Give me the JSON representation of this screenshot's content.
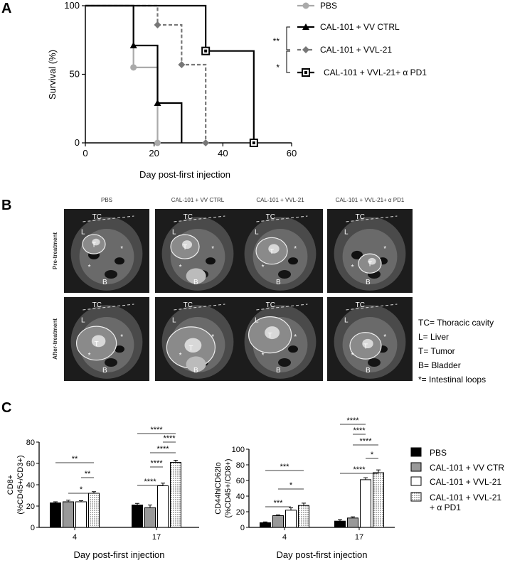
{
  "panels": {
    "a": "A",
    "b": "B",
    "c": "C"
  },
  "chart_data": [
    {
      "type": "line",
      "subtype": "kaplan-meier",
      "ylabel": "Survival (%)",
      "xlabel": "Day post-first injection",
      "xlim": [
        0,
        60
      ],
      "ylim": [
        0,
        100
      ],
      "xticks": [
        "0",
        "20",
        "40",
        "60"
      ],
      "yticks": [
        "0",
        "50",
        "100"
      ],
      "series": [
        {
          "name": "PBS",
          "color": "#aaaaaa",
          "dash": false,
          "marker": "circle",
          "x": [
            0,
            14,
            14,
            21,
            21
          ],
          "y": [
            100,
            100,
            55,
            55,
            0
          ]
        },
        {
          "name": "CAL-101 + VV CTRL",
          "color": "#000000",
          "dash": false,
          "marker": "triangle",
          "x": [
            0,
            14,
            14,
            21,
            21,
            28,
            28
          ],
          "y": [
            100,
            100,
            71,
            71,
            29,
            29,
            0
          ]
        },
        {
          "name": "CAL-101 + VVL-21",
          "color": "#777777",
          "dash": true,
          "marker": "diamond",
          "x": [
            0,
            21,
            21,
            28,
            28,
            35,
            35
          ],
          "y": [
            100,
            100,
            86,
            86,
            57,
            57,
            0
          ]
        },
        {
          "name": "CAL-101 + VVL-21+ α PD1",
          "color": "#000000",
          "dash": false,
          "marker": "square",
          "x": [
            0,
            35,
            35,
            49,
            49
          ],
          "y": [
            100,
            100,
            67,
            67,
            0
          ]
        }
      ],
      "markers": [
        {
          "series": 0,
          "x": 14,
          "y": 55
        },
        {
          "series": 0,
          "x": 21,
          "y": 0
        },
        {
          "series": 1,
          "x": 14,
          "y": 71
        },
        {
          "series": 1,
          "x": 21,
          "y": 29
        },
        {
          "series": 2,
          "x": 21,
          "y": 86
        },
        {
          "series": 2,
          "x": 28,
          "y": 57
        },
        {
          "series": 2,
          "x": 35,
          "y": 0
        },
        {
          "series": 3,
          "x": 35,
          "y": 67
        },
        {
          "series": 3,
          "x": 49,
          "y": 0
        }
      ],
      "significance": [
        "**",
        "*"
      ]
    },
    {
      "type": "image-grid",
      "column_titles": [
        "PBS",
        "CAL-101 + VV CTRL",
        "CAL-101 + VVL-21",
        "CAL-101 + VVL-21+ α PD1"
      ],
      "row_titles": [
        "Pre-treatment",
        "After-treatment"
      ],
      "legend": [
        "TC= Thoracic cavity",
        "L= Liver",
        "T= Tumor",
        "B= Bladder",
        "*= Intestinal loops"
      ],
      "labels": {
        "tc": "TC",
        "l": "L",
        "t": "T",
        "b": "B",
        "star": "*"
      }
    },
    {
      "type": "bar",
      "ylabel": "CD8+\n(%CD45+/CD3+)",
      "ylabel_lines": [
        "CD8+",
        "(%CD45+/CD3+)"
      ],
      "xlabel": "Day post-first injection",
      "categories": [
        "4",
        "17"
      ],
      "ylim": [
        0,
        80
      ],
      "yticks": [
        "0",
        "20",
        "40",
        "60",
        "80"
      ],
      "series": [
        {
          "name": "PBS",
          "values": [
            23,
            21
          ],
          "errors": [
            1,
            1.5
          ]
        },
        {
          "name": "CAL-101 + VV CTRL",
          "values": [
            24,
            18.5
          ],
          "errors": [
            1.5,
            2.5
          ]
        },
        {
          "name": "CAL-101 + VVL-21",
          "values": [
            24,
            39
          ],
          "errors": [
            1,
            2.5
          ]
        },
        {
          "name": "CAL-101 + VVL-21\n+ α PD1",
          "values": [
            32,
            61
          ],
          "errors": [
            1.5,
            2
          ]
        }
      ],
      "significance": [
        {
          "cat": 0,
          "from": 0,
          "to": 3,
          "level": 1,
          "label": "**"
        },
        {
          "cat": 0,
          "from": 2,
          "to": 3,
          "level": 2,
          "label": "**"
        },
        {
          "cat": 0,
          "from": 1,
          "to": 3,
          "level": 3,
          "label": "*"
        },
        {
          "cat": 1,
          "from": 0,
          "to": 3,
          "level": 1,
          "label": "****"
        },
        {
          "cat": 1,
          "from": 2,
          "to": 3,
          "level": 2,
          "label": "****"
        },
        {
          "cat": 1,
          "from": 1,
          "to": 3,
          "level": 3,
          "label": "****"
        },
        {
          "cat": 1,
          "from": 1,
          "to": 2,
          "level": 4,
          "label": "****"
        },
        {
          "cat": 1,
          "from": 0,
          "to": 2,
          "level": 5,
          "label": "****"
        }
      ]
    },
    {
      "type": "bar",
      "ylabel_lines": [
        "CD44hiCD62lo",
        "(%CD45+/CD8+)"
      ],
      "xlabel": "Day post-first injection",
      "categories": [
        "4",
        "17"
      ],
      "ylim": [
        0,
        100
      ],
      "yticks": [
        "0",
        "20",
        "40",
        "60",
        "80",
        "100"
      ],
      "series": [
        {
          "name": "PBS",
          "values": [
            6,
            8
          ],
          "errors": [
            1,
            2
          ]
        },
        {
          "name": "CAL-101 + VV CTRL",
          "values": [
            15,
            12
          ],
          "errors": [
            1,
            1.5
          ]
        },
        {
          "name": "CAL-101 + VVL-21",
          "values": [
            22,
            61
          ],
          "errors": [
            3,
            2.5
          ]
        },
        {
          "name": "CAL-101 + VVL-21\n+ α PD1",
          "values": [
            28,
            70
          ],
          "errors": [
            3,
            3.5
          ]
        }
      ],
      "significance": [
        {
          "cat": 0,
          "from": 0,
          "to": 2,
          "level": 1,
          "label": "***"
        },
        {
          "cat": 0,
          "from": 1,
          "to": 3,
          "level": 2,
          "label": "*"
        },
        {
          "cat": 0,
          "from": 0,
          "to": 3,
          "level": 3,
          "label": "***"
        },
        {
          "cat": 1,
          "from": 0,
          "to": 2,
          "level": 1,
          "label": "****"
        },
        {
          "cat": 1,
          "from": 1,
          "to": 2,
          "level": 2,
          "label": "****"
        },
        {
          "cat": 1,
          "from": 1,
          "to": 3,
          "level": 3,
          "label": "****"
        },
        {
          "cat": 1,
          "from": 2,
          "to": 3,
          "level": 4,
          "label": "*"
        },
        {
          "cat": 1,
          "from": 0,
          "to": 3,
          "level": 5,
          "label": "****"
        }
      ]
    }
  ],
  "bar_legend": [
    "PBS",
    "CAL-101 + VV CTRL",
    "CAL-101 + VVL-21",
    "CAL-101 + VVL-21",
    "+ α PD1"
  ]
}
